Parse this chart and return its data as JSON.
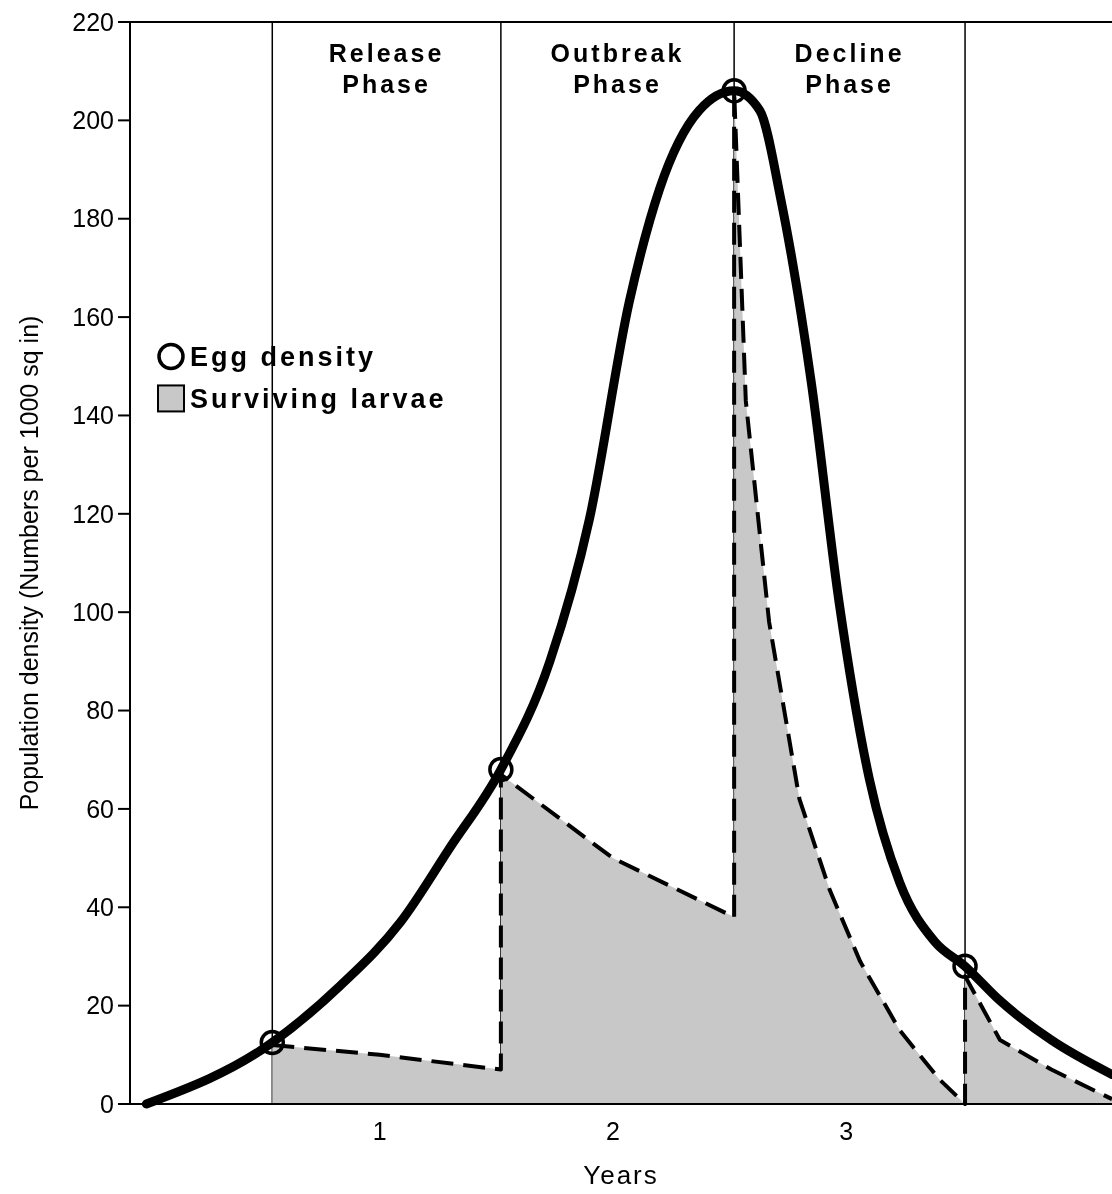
{
  "chart_data": {
    "type": "line",
    "xlabel": "Years",
    "ylabel": "Population density (Numbers per 1000 sq in)",
    "xlim": [
      -0.07,
      4.14
    ],
    "xticks": [
      1,
      2,
      3
    ],
    "ylim": [
      0,
      220
    ],
    "yticks": [
      0,
      20,
      40,
      60,
      80,
      100,
      120,
      140,
      160,
      180,
      200,
      220
    ],
    "grid": false,
    "legend": "left",
    "ref_lines": [
      {
        "axis": "x",
        "value": 0.54,
        "color": "#000000"
      },
      {
        "axis": "x",
        "value": 1.52,
        "color": "#000000"
      },
      {
        "axis": "x",
        "value": 2.52,
        "color": "#000000"
      },
      {
        "axis": "x",
        "value": 3.51,
        "color": "#000000"
      }
    ],
    "annotations": [
      "Release Phase",
      "Outbreak Phase",
      "Decline Phase"
    ],
    "series": [
      {
        "color": "#000000",
        "marker": "none",
        "line_style": "solid",
        "x": [
          0.0,
          0.54,
          0.83,
          1.09,
          1.3,
          1.52,
          1.73,
          1.9,
          2.07,
          2.2,
          2.37,
          2.52,
          2.63,
          2.72,
          2.85,
          2.97,
          3.1,
          3.23,
          3.38,
          3.51,
          3.66,
          3.88,
          4.14
        ],
        "values": [
          0,
          12.5,
          24,
          37,
          52,
          68,
          90,
          119,
          163,
          186,
          202,
          206,
          202,
          184,
          147,
          102,
          66,
          45,
          33,
          28,
          21,
          13,
          6
        ]
      },
      {
        "type": "scatter",
        "name": "Egg density",
        "color": "#000000",
        "marker": "circle",
        "x": [
          0.54,
          1.52,
          2.52,
          3.51
        ],
        "values": [
          12.5,
          68,
          206,
          28
        ]
      },
      {
        "type": "area",
        "name": "Surviving larvae",
        "color": "#c8c8c8",
        "line_style": "dashed",
        "x": [
          0.54,
          1.0,
          1.52,
          1.52,
          2.0,
          2.52,
          2.52,
          2.57,
          2.67,
          2.8,
          2.93,
          3.06,
          3.23,
          3.4,
          3.51,
          3.51,
          3.66,
          3.88,
          4.14
        ],
        "values": [
          12,
          10,
          7,
          67,
          50,
          38,
          206,
          143,
          98,
          62,
          43.5,
          29,
          15,
          5,
          0,
          26,
          13,
          7,
          1
        ]
      }
    ]
  }
}
